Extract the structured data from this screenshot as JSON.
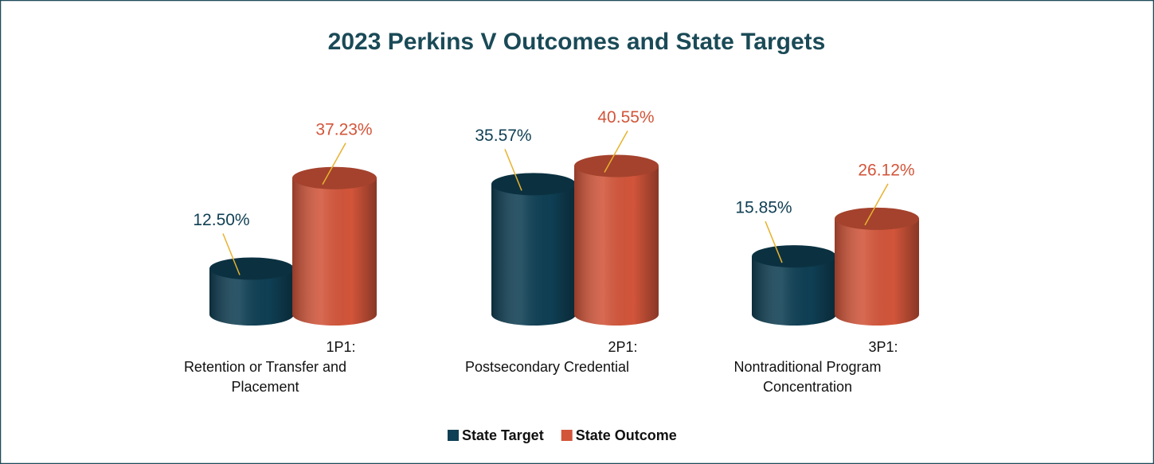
{
  "chart_data": {
    "type": "bar",
    "title": "2023 Perkins V Outcomes and State Targets",
    "categories": [
      "1P1:\nRetention or Transfer and\nPlacement",
      "2P1:\nPostsecondary Credential",
      "3P1:\nNontraditional Program\nConcentration"
    ],
    "series": [
      {
        "name": "State Target",
        "color": "#0f3f54",
        "values": [
          12.5,
          35.57,
          15.85
        ],
        "value_labels": [
          "12.50%",
          "35.57%",
          "15.85%"
        ]
      },
      {
        "name": "State Outcome",
        "color": "#d2553a",
        "values": [
          37.23,
          40.55,
          26.12
        ],
        "value_labels": [
          "37.23%",
          "40.55%",
          "26.12%"
        ]
      }
    ],
    "legend": "bottom"
  }
}
